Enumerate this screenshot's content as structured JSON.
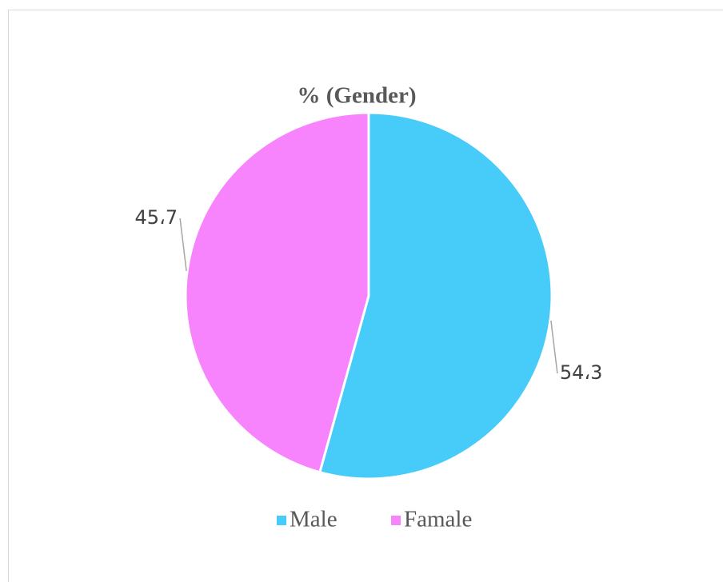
{
  "chart_data": {
    "type": "pie",
    "title": "% (Gender)",
    "categories": [
      "Male",
      "Famale"
    ],
    "values": [
      54.3,
      45.7
    ],
    "value_labels": [
      "54،3",
      "45،7"
    ],
    "colors": [
      "#47cbf8",
      "#f784fc"
    ],
    "legend": "bottom"
  }
}
